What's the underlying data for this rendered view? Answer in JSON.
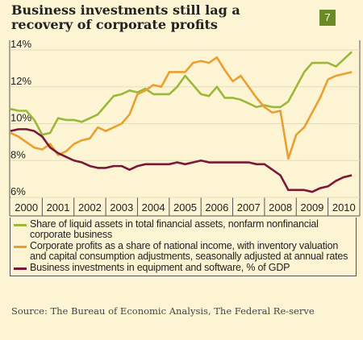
{
  "chart_data": {
    "type": "line",
    "title": "Business investments still lag a recovery of corporate profits",
    "badge": "7",
    "source": "Source: The Bureau of Economic Analysis, The Federal Re-serve",
    "x": [
      2000,
      2000.25,
      2000.5,
      2000.75,
      2001,
      2001.25,
      2001.5,
      2001.75,
      2002,
      2002.25,
      2002.5,
      2002.75,
      2003,
      2003.25,
      2003.5,
      2003.75,
      2004,
      2004.25,
      2004.5,
      2004.75,
      2005,
      2005.25,
      2005.5,
      2005.75,
      2006,
      2006.25,
      2006.5,
      2006.75,
      2007,
      2007.25,
      2007.5,
      2007.75,
      2008,
      2008.25,
      2008.5,
      2008.75,
      2009,
      2009.25,
      2009.5,
      2009.75,
      2010,
      2010.25,
      2010.5,
      2010.75
    ],
    "series": [
      {
        "name": "Share of liquid assets in total financial assets, nonfarm nonfinancial corporate business",
        "color": "#9cb83a",
        "values": [
          10.8,
          10.7,
          10.7,
          10.2,
          9.4,
          9.5,
          10.3,
          10.2,
          10.2,
          10.1,
          10.3,
          10.5,
          11.0,
          11.5,
          11.6,
          11.8,
          11.7,
          11.9,
          11.6,
          11.6,
          11.6,
          12.0,
          12.6,
          12.1,
          11.6,
          11.5,
          12.0,
          11.4,
          11.4,
          11.3,
          11.1,
          10.9,
          11.0,
          10.9,
          10.9,
          11.2,
          12.0,
          12.8,
          13.3,
          13.3,
          13.3,
          13.1,
          13.5,
          13.9
        ]
      },
      {
        "name": "Corporate profits as a share of national income, with inventory valuation and capital consumption adjustments, seasonally adjusted at annual rates",
        "color": "#e9a031",
        "values": [
          9.5,
          9.3,
          9.0,
          8.7,
          8.6,
          8.9,
          8.3,
          8.5,
          8.9,
          9.1,
          9.2,
          9.8,
          9.6,
          9.8,
          10.0,
          10.5,
          11.6,
          11.8,
          12.1,
          12.0,
          12.8,
          12.8,
          12.8,
          13.3,
          13.4,
          13.3,
          13.6,
          12.9,
          12.3,
          12.6,
          12.0,
          11.4,
          10.9,
          10.6,
          10.7,
          8.1,
          9.4,
          9.8,
          10.6,
          11.4,
          12.4,
          12.6,
          12.7,
          12.8
        ]
      },
      {
        "name": "Business investments in equipment and software, % of GDP",
        "color": "#7b1838",
        "values": [
          9.6,
          9.7,
          9.7,
          9.6,
          9.3,
          8.7,
          8.4,
          8.2,
          8.0,
          7.9,
          7.7,
          7.6,
          7.6,
          7.7,
          7.7,
          7.5,
          7.7,
          7.8,
          7.8,
          7.8,
          7.8,
          7.9,
          7.8,
          7.9,
          8.0,
          7.9,
          7.9,
          7.9,
          7.9,
          7.9,
          7.9,
          7.8,
          7.8,
          7.5,
          7.2,
          6.4,
          6.4,
          6.4,
          6.3,
          6.5,
          6.6,
          6.9,
          7.1,
          7.2
        ]
      }
    ],
    "xlim": [
      2000,
      2011
    ],
    "xticks": [
      {
        "value": 2000.5,
        "label": "2000"
      },
      {
        "value": 2001.5,
        "label": "2001"
      },
      {
        "value": 2002.5,
        "label": "2002"
      },
      {
        "value": 2003.5,
        "label": "2003"
      },
      {
        "value": 2004.5,
        "label": "2004"
      },
      {
        "value": 2005.5,
        "label": "2005"
      },
      {
        "value": 2006.5,
        "label": "2006"
      },
      {
        "value": 2007.5,
        "label": "2007"
      },
      {
        "value": 2008.5,
        "label": "2008"
      },
      {
        "value": 2009.5,
        "label": "2009"
      },
      {
        "value": 2010.5,
        "label": "2010"
      }
    ],
    "ylim": [
      6,
      14
    ],
    "yticks": [
      {
        "value": 6,
        "label": "6%"
      },
      {
        "value": 8,
        "label": "8%"
      },
      {
        "value": 10,
        "label": "10%"
      },
      {
        "value": 12,
        "label": "12%"
      },
      {
        "value": 14,
        "label": "14%"
      }
    ],
    "grid": true
  }
}
